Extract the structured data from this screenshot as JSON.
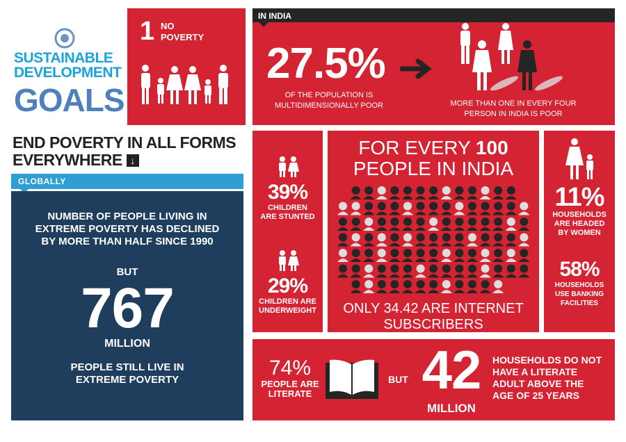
{
  "logo": {
    "line1": "SUSTAINABLE",
    "line2": "DEVELOPMENT",
    "line3": "GOALS",
    "emblem": "un-emblem-icon"
  },
  "goal": {
    "number": "1",
    "name_line1": "NO",
    "name_line2": "POVERTY",
    "icon": "family-icon"
  },
  "headline": {
    "line1": "END POVERTY IN ALL FORMS",
    "line2": "EVERYWHERE",
    "icon": "arrow-down-icon"
  },
  "global": {
    "label": "GLOBALLY",
    "text_lines": [
      "NUMBER OF PEOPLE LIVING IN",
      "EXTREME POVERTY HAS DECLINED",
      "BY MORE THAN HALF SINCE 1990"
    ],
    "but": "BUT",
    "number": "767",
    "unit": "MILLION",
    "tail_lines": [
      "PEOPLE STILL LIVE IN",
      "EXTREME POVERTY"
    ]
  },
  "india": {
    "label": "IN INDIA",
    "percent": "27.5%",
    "percent_caption": [
      "OF THE POPULATION IS",
      "MULTIDIMENSIONALLY POOR"
    ],
    "people_caption": [
      "MORE THAN ONE IN EVERY FOUR",
      "PERSON IN INDIA IS POOR"
    ]
  },
  "children": {
    "stunted_pct": "39%",
    "stunted_label": [
      "CHILDREN",
      "ARE STUNTED"
    ],
    "underweight_pct": "29%",
    "underweight_label": [
      "CHILDREN ARE",
      "UNDERWEIGHT"
    ]
  },
  "internet": {
    "heading_line1_a": "FOR EVERY ",
    "heading_line1_b": "100",
    "heading_line2": "PEOPLE IN INDIA",
    "caption_line1": "ONLY 34.42 ARE INTERNET",
    "caption_line2": "SUBSCRIBERS"
  },
  "households": {
    "women_pct": "11%",
    "women_label": [
      "HOUSEHOLDS",
      "ARE HEADED",
      "BY WOMEN"
    ],
    "banking_pct": "58%",
    "banking_label": [
      "HOUSEHOLDS",
      "USE BANKING",
      "FACILITIES"
    ]
  },
  "literacy": {
    "pct": "74%",
    "label": [
      "PEOPLE ARE",
      "LITERATE"
    ],
    "but": "BUT",
    "number": "42",
    "unit": "MILLION",
    "text": [
      "HOUSEHOLDS DO NOT",
      "HAVE A LITERATE",
      "ADULT ABOVE THE",
      "AGE OF 25 YEARS"
    ]
  },
  "colors": {
    "red": "#d42333",
    "navy": "#1f3d5c",
    "blue": "#2e9ed3",
    "dark": "#252525"
  }
}
